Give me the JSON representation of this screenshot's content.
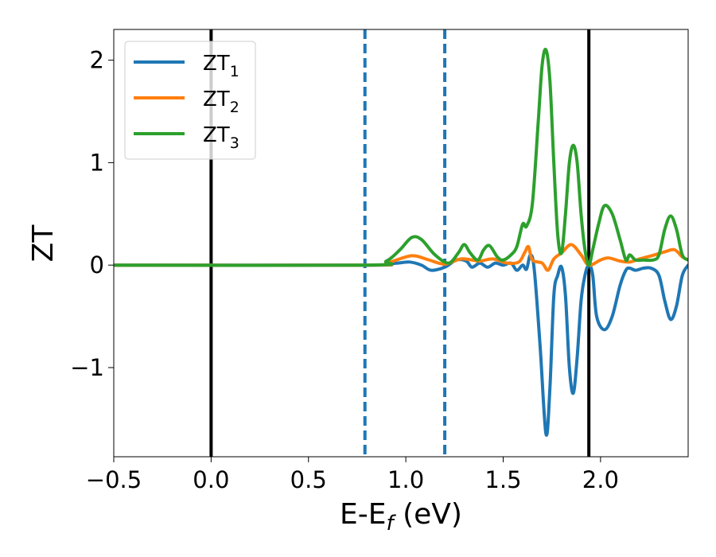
{
  "chart_data": {
    "type": "line",
    "title": "",
    "xlabel": "E-E",
    "xlabel_sub": "f",
    "xlabel_unit": " (eV)",
    "ylabel": "ZT",
    "xlim": [
      -0.5,
      2.45
    ],
    "ylim": [
      -1.87,
      2.3
    ],
    "xticks": [
      -0.5,
      0.0,
      0.5,
      1.0,
      1.5,
      2.0
    ],
    "xtick_labels": [
      "−0.5",
      "0.0",
      "0.5",
      "1.0",
      "1.5",
      "2.0"
    ],
    "yticks": [
      -1,
      0,
      1,
      2
    ],
    "ytick_labels": [
      "−1",
      "0",
      "1",
      "2"
    ],
    "grid": false,
    "legend_position": "top-left",
    "vertical_lines": [
      {
        "x": 0.0,
        "style": "solid",
        "color": "#000000"
      },
      {
        "x": 0.79,
        "style": "dashed",
        "color": "#1f77b4"
      },
      {
        "x": 1.2,
        "style": "dashed",
        "color": "#1f77b4"
      },
      {
        "x": 1.94,
        "style": "solid",
        "color": "#000000"
      }
    ],
    "series": [
      {
        "name": "ZT",
        "name_sub": "1",
        "color": "#1f77b4",
        "points": [
          [
            -0.5,
            0
          ],
          [
            0.8,
            0
          ],
          [
            0.9,
            0.01
          ],
          [
            0.96,
            0.02
          ],
          [
            1.02,
            0.03
          ],
          [
            1.08,
            0.0
          ],
          [
            1.13,
            -0.05
          ],
          [
            1.2,
            -0.02
          ],
          [
            1.26,
            0.05
          ],
          [
            1.31,
            0.04
          ],
          [
            1.34,
            -0.02
          ],
          [
            1.38,
            0.02
          ],
          [
            1.42,
            -0.02
          ],
          [
            1.46,
            0.02
          ],
          [
            1.5,
            0.0
          ],
          [
            1.54,
            0.02
          ],
          [
            1.57,
            -0.05
          ],
          [
            1.6,
            0.0
          ],
          [
            1.62,
            -0.04
          ],
          [
            1.64,
            0.1
          ],
          [
            1.66,
            -0.05
          ],
          [
            1.69,
            -0.8
          ],
          [
            1.72,
            -1.65
          ],
          [
            1.74,
            -1.2
          ],
          [
            1.76,
            -0.3
          ],
          [
            1.78,
            -0.1
          ],
          [
            1.8,
            -0.02
          ],
          [
            1.82,
            -0.3
          ],
          [
            1.84,
            -1.0
          ],
          [
            1.86,
            -1.25
          ],
          [
            1.88,
            -0.9
          ],
          [
            1.9,
            -0.35
          ],
          [
            1.92,
            -0.1
          ],
          [
            1.94,
            0.0
          ],
          [
            1.96,
            -0.1
          ],
          [
            1.98,
            -0.5
          ],
          [
            2.02,
            -0.63
          ],
          [
            2.06,
            -0.5
          ],
          [
            2.1,
            -0.2
          ],
          [
            2.13,
            -0.05
          ],
          [
            2.15,
            -0.03
          ],
          [
            2.18,
            -0.05
          ],
          [
            2.22,
            -0.03
          ],
          [
            2.26,
            -0.03
          ],
          [
            2.3,
            -0.1
          ],
          [
            2.33,
            -0.35
          ],
          [
            2.36,
            -0.53
          ],
          [
            2.39,
            -0.4
          ],
          [
            2.42,
            -0.1
          ],
          [
            2.45,
            0.0
          ]
        ]
      },
      {
        "name": "ZT",
        "name_sub": "2",
        "color": "#ff7f0e",
        "points": [
          [
            -0.5,
            0
          ],
          [
            0.8,
            0
          ],
          [
            0.9,
            0.02
          ],
          [
            1.0,
            0.08
          ],
          [
            1.05,
            0.09
          ],
          [
            1.12,
            0.05
          ],
          [
            1.2,
            0.01
          ],
          [
            1.28,
            0.06
          ],
          [
            1.34,
            0.05
          ],
          [
            1.38,
            0.04
          ],
          [
            1.45,
            0.06
          ],
          [
            1.52,
            0.02
          ],
          [
            1.58,
            0.03
          ],
          [
            1.61,
            0.12
          ],
          [
            1.63,
            0.18
          ],
          [
            1.65,
            0.05
          ],
          [
            1.7,
            0.02
          ],
          [
            1.73,
            -0.05
          ],
          [
            1.76,
            0.06
          ],
          [
            1.8,
            0.12
          ],
          [
            1.85,
            0.2
          ],
          [
            1.9,
            0.1
          ],
          [
            1.94,
            0.0
          ],
          [
            2.0,
            0.05
          ],
          [
            2.04,
            0.07
          ],
          [
            2.1,
            0.04
          ],
          [
            2.15,
            0.03
          ],
          [
            2.2,
            0.06
          ],
          [
            2.26,
            0.09
          ],
          [
            2.33,
            0.13
          ],
          [
            2.38,
            0.15
          ],
          [
            2.42,
            0.08
          ],
          [
            2.45,
            0.05
          ]
        ]
      },
      {
        "name": "ZT",
        "name_sub": "3",
        "color": "#2ca02c",
        "points": [
          [
            -0.5,
            0
          ],
          [
            0.8,
            0
          ],
          [
            0.9,
            0.04
          ],
          [
            0.97,
            0.15
          ],
          [
            1.03,
            0.27
          ],
          [
            1.08,
            0.25
          ],
          [
            1.15,
            0.1
          ],
          [
            1.22,
            0.02
          ],
          [
            1.27,
            0.12
          ],
          [
            1.3,
            0.2
          ],
          [
            1.33,
            0.12
          ],
          [
            1.37,
            0.05
          ],
          [
            1.4,
            0.15
          ],
          [
            1.43,
            0.19
          ],
          [
            1.47,
            0.08
          ],
          [
            1.5,
            0.05
          ],
          [
            1.54,
            0.1
          ],
          [
            1.57,
            0.18
          ],
          [
            1.6,
            0.4
          ],
          [
            1.62,
            0.38
          ],
          [
            1.65,
            0.6
          ],
          [
            1.68,
            1.4
          ],
          [
            1.7,
            1.95
          ],
          [
            1.72,
            2.1
          ],
          [
            1.74,
            1.8
          ],
          [
            1.76,
            1.0
          ],
          [
            1.78,
            0.3
          ],
          [
            1.8,
            0.12
          ],
          [
            1.82,
            0.5
          ],
          [
            1.84,
            1.0
          ],
          [
            1.86,
            1.17
          ],
          [
            1.88,
            1.0
          ],
          [
            1.9,
            0.5
          ],
          [
            1.92,
            0.15
          ],
          [
            1.94,
            0.0
          ],
          [
            1.96,
            0.15
          ],
          [
            1.99,
            0.4
          ],
          [
            2.02,
            0.58
          ],
          [
            2.06,
            0.5
          ],
          [
            2.1,
            0.25
          ],
          [
            2.13,
            0.05
          ],
          [
            2.15,
            0.1
          ],
          [
            2.18,
            0.05
          ],
          [
            2.22,
            0.05
          ],
          [
            2.27,
            0.05
          ],
          [
            2.3,
            0.1
          ],
          [
            2.33,
            0.35
          ],
          [
            2.36,
            0.48
          ],
          [
            2.39,
            0.35
          ],
          [
            2.42,
            0.1
          ],
          [
            2.45,
            0.05
          ]
        ]
      }
    ]
  }
}
